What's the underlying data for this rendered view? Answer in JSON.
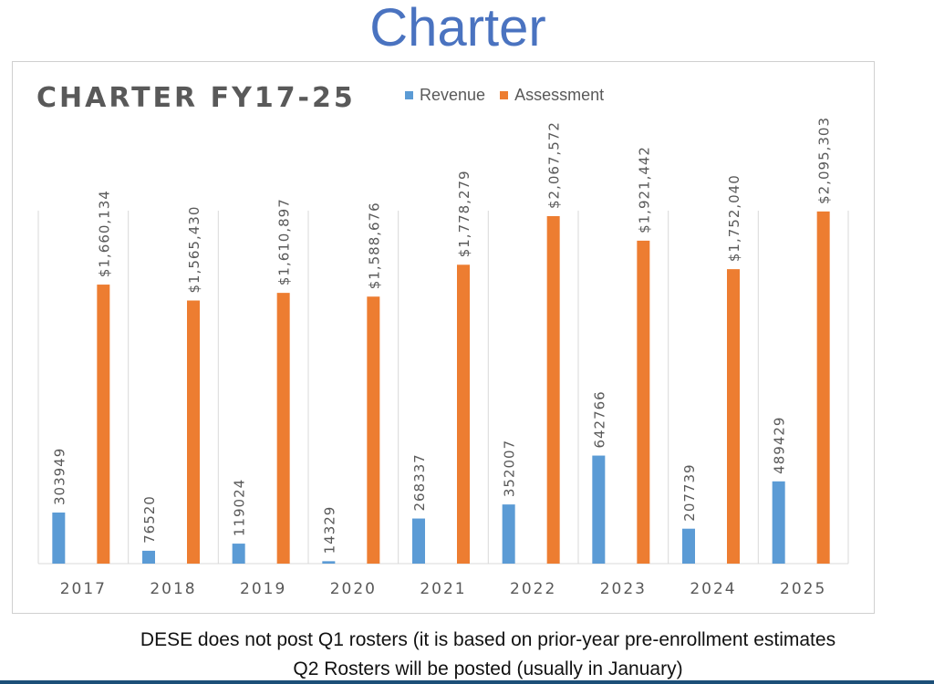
{
  "slide": {
    "title": "Charter",
    "note_line1": "DESE does not post Q1 rosters (it is based on prior-year pre-enrollment estimates",
    "note_line2": "Q2 Rosters will be posted (usually in January)"
  },
  "colors": {
    "revenue": "#5b9bd5",
    "assessment": "#ed7d31",
    "grid": "#d9d9d9",
    "text": "#595959"
  },
  "chart_data": {
    "type": "bar",
    "title": "CHARTER FY17-25",
    "categories": [
      "2017",
      "2018",
      "2019",
      "2020",
      "2021",
      "2022",
      "2023",
      "2024",
      "2025"
    ],
    "series": [
      {
        "name": "Revenue",
        "values": [
          303949,
          76520,
          119024,
          14329,
          268337,
          352007,
          642766,
          207739,
          489429
        ],
        "labels": [
          "303949",
          "76520",
          "119024",
          "14329",
          "268337",
          "352007",
          "642766",
          "207739",
          "489429"
        ]
      },
      {
        "name": "Assessment",
        "values": [
          1660134,
          1565430,
          1610897,
          1588676,
          1778279,
          2067572,
          1921442,
          1752040,
          2095303
        ],
        "labels": [
          "$1,660,134",
          "$1,565,430",
          "$1,610,897",
          "$1,588,676",
          "$1,778,279",
          "$2,067,572",
          "$1,921,442",
          "$1,752,040",
          "$2,095,303"
        ]
      }
    ],
    "ylim": [
      0,
      2100000
    ],
    "grid": "vertical category separators",
    "legend": "top"
  }
}
